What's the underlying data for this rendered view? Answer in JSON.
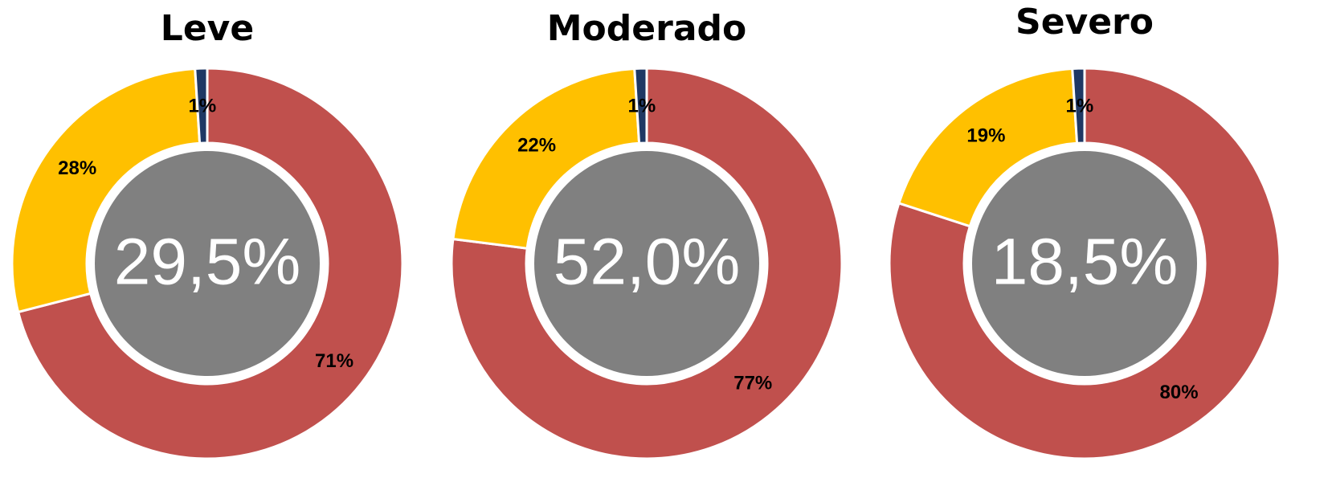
{
  "chart_data": [
    {
      "type": "donut",
      "title": "Leve",
      "center_label": "29,5%",
      "values": [
        71,
        28,
        1
      ],
      "value_labels": [
        "71%",
        "28%",
        "1%"
      ],
      "colors": [
        "#c0504d",
        "#ffc000",
        "#1f3864"
      ]
    },
    {
      "type": "donut",
      "title": "Moderado",
      "center_label": "52,0%",
      "values": [
        77,
        22,
        1
      ],
      "value_labels": [
        "77%",
        "22%",
        "1%"
      ],
      "colors": [
        "#c0504d",
        "#ffc000",
        "#1f3864"
      ]
    },
    {
      "type": "donut",
      "title": "Severo",
      "center_label": "18,5%",
      "values": [
        80,
        19,
        1
      ],
      "value_labels": [
        "80%",
        "19%",
        "1%"
      ],
      "colors": [
        "#c0504d",
        "#ffc000",
        "#1f3864"
      ]
    }
  ]
}
